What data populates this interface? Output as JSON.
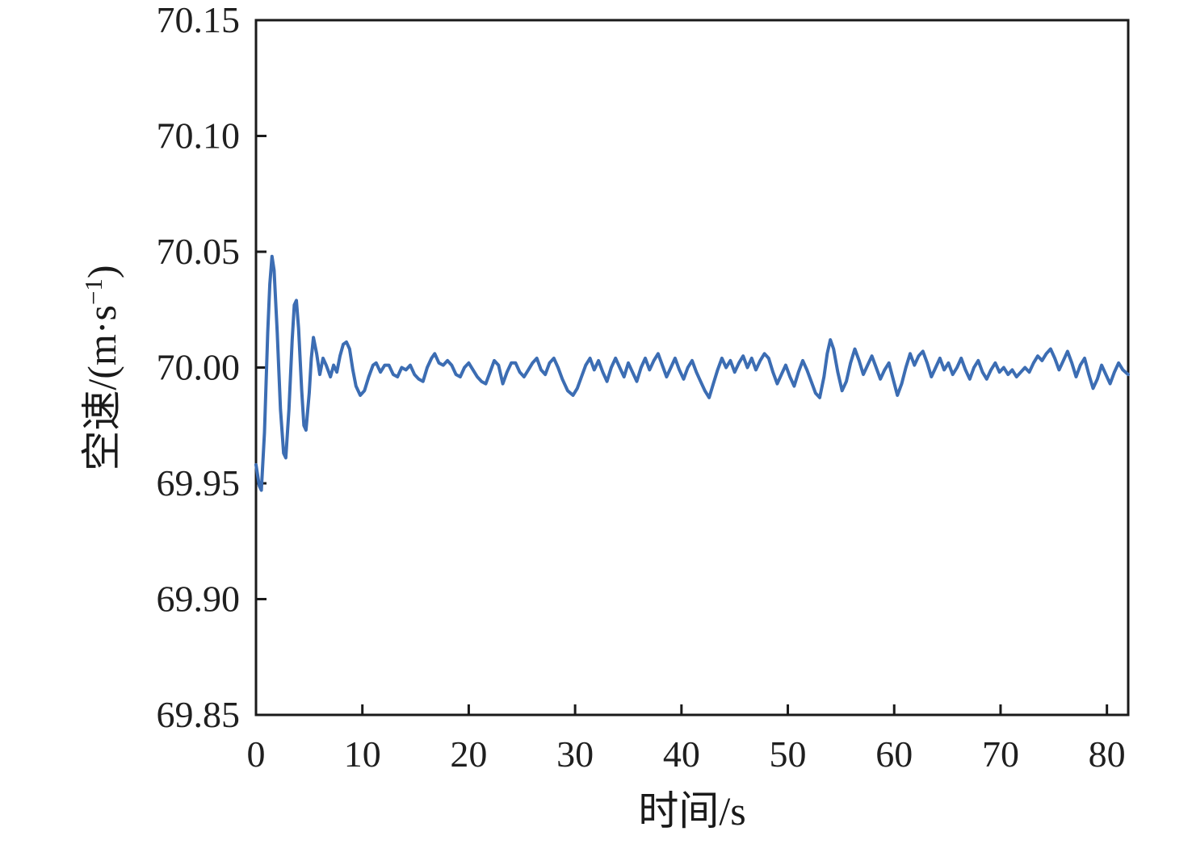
{
  "figure": {
    "background": "#ffffff",
    "axis_color": "#1a1a1a",
    "tick_label_color": "#1f1f1f"
  },
  "chart_data": {
    "type": "line",
    "title": "",
    "xlabel": "时间/s",
    "ylabel": "空速/(m·s⁻¹)",
    "ylabel_parts": {
      "pre": "空速/(m·s",
      "sup": "−1",
      "post": ")"
    },
    "xlim": [
      0,
      82
    ],
    "ylim": [
      69.85,
      70.15
    ],
    "x_ticks": [
      "0",
      "10",
      "20",
      "30",
      "40",
      "50",
      "60",
      "70",
      "80"
    ],
    "y_ticks": [
      "69.85",
      "69.90",
      "69.95",
      "70.00",
      "70.05",
      "70.10",
      "70.15"
    ],
    "grid": false,
    "legend": false,
    "line_color": "#3c6db3",
    "series": [
      {
        "name": "空速",
        "points": [
          [
            0,
            69.958
          ],
          [
            0.3,
            69.949
          ],
          [
            0.5,
            69.947
          ],
          [
            0.8,
            69.972
          ],
          [
            1.1,
            70.015
          ],
          [
            1.3,
            70.036
          ],
          [
            1.5,
            70.048
          ],
          [
            1.7,
            70.042
          ],
          [
            2,
            70.015
          ],
          [
            2.3,
            69.982
          ],
          [
            2.6,
            69.963
          ],
          [
            2.8,
            69.961
          ],
          [
            3.1,
            69.982
          ],
          [
            3.4,
            70.012
          ],
          [
            3.6,
            70.027
          ],
          [
            3.8,
            70.029
          ],
          [
            4,
            70.017
          ],
          [
            4.3,
            69.99
          ],
          [
            4.5,
            69.975
          ],
          [
            4.7,
            69.973
          ],
          [
            5,
            69.989
          ],
          [
            5.2,
            70.004
          ],
          [
            5.4,
            70.013
          ],
          [
            5.7,
            70.006
          ],
          [
            6,
            69.997
          ],
          [
            6.3,
            70.004
          ],
          [
            6.6,
            70.001
          ],
          [
            7,
            69.996
          ],
          [
            7.3,
            70.001
          ],
          [
            7.6,
            69.998
          ],
          [
            7.9,
            70.005
          ],
          [
            8.2,
            70.01
          ],
          [
            8.5,
            70.011
          ],
          [
            8.8,
            70.008
          ],
          [
            9.1,
            69.999
          ],
          [
            9.4,
            69.992
          ],
          [
            9.8,
            69.988
          ],
          [
            10.2,
            69.99
          ],
          [
            10.6,
            69.996
          ],
          [
            11,
            70.001
          ],
          [
            11.3,
            70.002
          ],
          [
            11.7,
            69.998
          ],
          [
            12.1,
            70.001
          ],
          [
            12.5,
            70.001
          ],
          [
            12.9,
            69.997
          ],
          [
            13.3,
            69.996
          ],
          [
            13.7,
            70
          ],
          [
            14.1,
            69.999
          ],
          [
            14.5,
            70.001
          ],
          [
            14.9,
            69.997
          ],
          [
            15.3,
            69.995
          ],
          [
            15.7,
            69.994
          ],
          [
            16.1,
            70
          ],
          [
            16.5,
            70.004
          ],
          [
            16.8,
            70.006
          ],
          [
            17.2,
            70.002
          ],
          [
            17.6,
            70.001
          ],
          [
            18,
            70.003
          ],
          [
            18.4,
            70.001
          ],
          [
            18.8,
            69.997
          ],
          [
            19.2,
            69.996
          ],
          [
            19.6,
            70
          ],
          [
            20,
            70.002
          ],
          [
            20.4,
            69.999
          ],
          [
            20.8,
            69.996
          ],
          [
            21.2,
            69.994
          ],
          [
            21.6,
            69.993
          ],
          [
            22,
            69.998
          ],
          [
            22.4,
            70.003
          ],
          [
            22.8,
            70.001
          ],
          [
            23.2,
            69.993
          ],
          [
            23.6,
            69.998
          ],
          [
            24,
            70.002
          ],
          [
            24.4,
            70.002
          ],
          [
            24.8,
            69.998
          ],
          [
            25.2,
            69.996
          ],
          [
            25.6,
            69.999
          ],
          [
            26,
            70.002
          ],
          [
            26.4,
            70.004
          ],
          [
            26.8,
            69.999
          ],
          [
            27.2,
            69.997
          ],
          [
            27.6,
            70.002
          ],
          [
            28,
            70.004
          ],
          [
            28.4,
            70
          ],
          [
            28.8,
            69.995
          ],
          [
            29.3,
            69.99
          ],
          [
            29.8,
            69.988
          ],
          [
            30.2,
            69.991
          ],
          [
            30.6,
            69.996
          ],
          [
            31,
            70.001
          ],
          [
            31.4,
            70.004
          ],
          [
            31.8,
            69.999
          ],
          [
            32.2,
            70.003
          ],
          [
            32.6,
            69.998
          ],
          [
            33,
            69.994
          ],
          [
            33.4,
            70
          ],
          [
            33.8,
            70.004
          ],
          [
            34.2,
            70
          ],
          [
            34.6,
            69.996
          ],
          [
            35,
            70.002
          ],
          [
            35.4,
            69.998
          ],
          [
            35.8,
            69.994
          ],
          [
            36.2,
            70
          ],
          [
            36.6,
            70.004
          ],
          [
            37,
            69.999
          ],
          [
            37.4,
            70.003
          ],
          [
            37.8,
            70.006
          ],
          [
            38.2,
            70.001
          ],
          [
            38.6,
            69.996
          ],
          [
            39,
            70
          ],
          [
            39.4,
            70.004
          ],
          [
            39.8,
            69.999
          ],
          [
            40.2,
            69.995
          ],
          [
            40.6,
            70
          ],
          [
            41,
            70.003
          ],
          [
            41.4,
            69.998
          ],
          [
            41.8,
            69.994
          ],
          [
            42.2,
            69.99
          ],
          [
            42.6,
            69.987
          ],
          [
            43,
            69.993
          ],
          [
            43.4,
            69.999
          ],
          [
            43.8,
            70.004
          ],
          [
            44.2,
            70
          ],
          [
            44.6,
            70.003
          ],
          [
            45,
            69.998
          ],
          [
            45.4,
            70.002
          ],
          [
            45.8,
            70.005
          ],
          [
            46.2,
            70
          ],
          [
            46.6,
            70.004
          ],
          [
            47,
            69.999
          ],
          [
            47.4,
            70.003
          ],
          [
            47.8,
            70.006
          ],
          [
            48.2,
            70.004
          ],
          [
            48.6,
            69.998
          ],
          [
            49,
            69.993
          ],
          [
            49.4,
            69.997
          ],
          [
            49.8,
            70.001
          ],
          [
            50.2,
            69.996
          ],
          [
            50.6,
            69.992
          ],
          [
            51,
            69.998
          ],
          [
            51.4,
            70.003
          ],
          [
            51.8,
            69.999
          ],
          [
            52.2,
            69.994
          ],
          [
            52.6,
            69.989
          ],
          [
            53,
            69.987
          ],
          [
            53.4,
            69.996
          ],
          [
            53.7,
            70.006
          ],
          [
            54,
            70.012
          ],
          [
            54.3,
            70.008
          ],
          [
            54.7,
            69.998
          ],
          [
            55.1,
            69.99
          ],
          [
            55.5,
            69.994
          ],
          [
            55.9,
            70.002
          ],
          [
            56.3,
            70.008
          ],
          [
            56.7,
            70.003
          ],
          [
            57.1,
            69.997
          ],
          [
            57.5,
            70.001
          ],
          [
            57.9,
            70.005
          ],
          [
            58.3,
            70
          ],
          [
            58.7,
            69.995
          ],
          [
            59.1,
            69.999
          ],
          [
            59.5,
            70.002
          ],
          [
            59.9,
            69.995
          ],
          [
            60.3,
            69.988
          ],
          [
            60.7,
            69.993
          ],
          [
            61.1,
            70
          ],
          [
            61.5,
            70.006
          ],
          [
            61.9,
            70.001
          ],
          [
            62.3,
            70.005
          ],
          [
            62.7,
            70.007
          ],
          [
            63.1,
            70.002
          ],
          [
            63.5,
            69.996
          ],
          [
            63.9,
            70
          ],
          [
            64.3,
            70.004
          ],
          [
            64.7,
            69.999
          ],
          [
            65.1,
            70.002
          ],
          [
            65.5,
            69.997
          ],
          [
            65.9,
            70
          ],
          [
            66.3,
            70.004
          ],
          [
            66.7,
            69.999
          ],
          [
            67.1,
            69.995
          ],
          [
            67.5,
            70
          ],
          [
            67.9,
            70.003
          ],
          [
            68.3,
            69.998
          ],
          [
            68.7,
            69.995
          ],
          [
            69.1,
            69.999
          ],
          [
            69.5,
            70.002
          ],
          [
            69.9,
            69.998
          ],
          [
            70.3,
            70
          ],
          [
            70.7,
            69.997
          ],
          [
            71.1,
            69.999
          ],
          [
            71.5,
            69.996
          ],
          [
            71.9,
            69.998
          ],
          [
            72.3,
            70
          ],
          [
            72.7,
            69.998
          ],
          [
            73.1,
            70.002
          ],
          [
            73.5,
            70.005
          ],
          [
            73.9,
            70.003
          ],
          [
            74.3,
            70.006
          ],
          [
            74.7,
            70.008
          ],
          [
            75.1,
            70.004
          ],
          [
            75.5,
            69.999
          ],
          [
            75.9,
            70.003
          ],
          [
            76.3,
            70.007
          ],
          [
            76.7,
            70.002
          ],
          [
            77.1,
            69.996
          ],
          [
            77.5,
            70.001
          ],
          [
            77.9,
            70.004
          ],
          [
            78.3,
            69.997
          ],
          [
            78.7,
            69.991
          ],
          [
            79.1,
            69.995
          ],
          [
            79.5,
            70.001
          ],
          [
            79.9,
            69.997
          ],
          [
            80.3,
            69.993
          ],
          [
            80.7,
            69.998
          ],
          [
            81.1,
            70.002
          ],
          [
            81.5,
            69.999
          ],
          [
            82,
            69.997
          ]
        ]
      }
    ]
  }
}
